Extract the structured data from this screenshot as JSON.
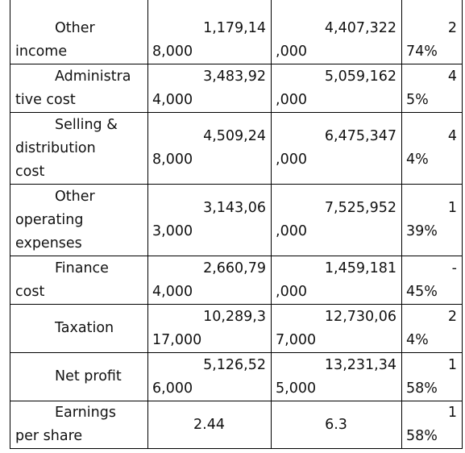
{
  "table": {
    "rows": [
      [
        [
          "Other",
          "income"
        ],
        [
          "1,179,14",
          "8,000"
        ],
        [
          "4,407,322",
          ",000"
        ],
        [
          "2",
          "74%"
        ]
      ],
      [
        [
          "Administra",
          "tive cost"
        ],
        [
          "3,483,92",
          "4,000"
        ],
        [
          "5,059,162",
          ",000"
        ],
        [
          "4",
          "5%"
        ]
      ],
      [
        [
          "Selling &",
          "distribution",
          "cost"
        ],
        [
          "4,509,24",
          "8,000"
        ],
        [
          "6,475,347",
          ",000"
        ],
        [
          "4",
          "4%"
        ]
      ],
      [
        [
          "Other",
          "operating",
          "expenses"
        ],
        [
          "3,143,06",
          "3,000"
        ],
        [
          "7,525,952",
          ",000"
        ],
        [
          "1",
          "39%"
        ]
      ],
      [
        [
          "Finance",
          "cost"
        ],
        [
          "2,660,79",
          "4,000"
        ],
        [
          "1,459,181",
          ",000"
        ],
        [
          "-",
          "45%"
        ]
      ],
      [
        [
          "Taxation"
        ],
        [
          "10,289,3",
          "17,000"
        ],
        [
          "12,730,06",
          "7,000"
        ],
        [
          "2",
          "4%"
        ]
      ],
      [
        [
          "Net profit"
        ],
        [
          "5,126,52",
          "6,000"
        ],
        [
          "13,231,34",
          "5,000"
        ],
        [
          "1",
          "58%"
        ]
      ],
      [
        [
          "Earnings",
          "per share"
        ],
        [
          "2.44"
        ],
        [
          "6.3"
        ],
        [
          "1",
          "58%"
        ]
      ]
    ]
  }
}
